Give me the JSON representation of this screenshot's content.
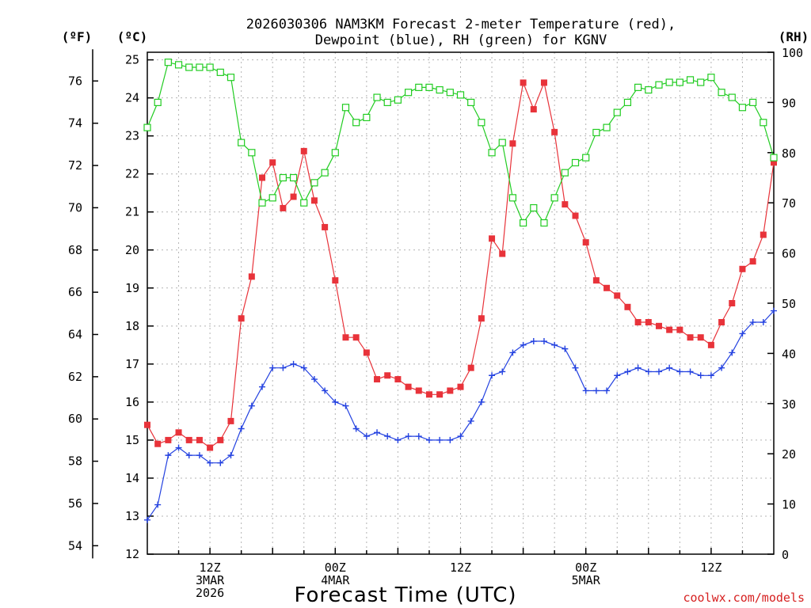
{
  "chart_data": {
    "type": "line",
    "title": [
      "2026030306 NAM3KM Forecast 2-meter Temperature (red),",
      "Dewpoint (blue), RH (green) for KGNV"
    ],
    "units": {
      "fahrenheit": "(ºF)",
      "celsius": "(ºC)",
      "rh": "(RH)"
    },
    "xlabel": "Forecast Time (UTC)",
    "credit": "coolwx.com/models",
    "x_ticks": [
      {
        "hour": 6,
        "lines": [
          "12Z",
          "3MAR",
          "2026"
        ]
      },
      {
        "hour": 18,
        "lines": [
          "00Z",
          "4MAR"
        ]
      },
      {
        "hour": 30,
        "lines": [
          "12Z"
        ]
      },
      {
        "hour": 42,
        "lines": [
          "00Z",
          "5MAR"
        ]
      },
      {
        "hour": 54,
        "lines": [
          "12Z"
        ]
      }
    ],
    "xlim": [
      0,
      60
    ],
    "ylim_celsius": [
      12,
      25.2
    ],
    "y_ticks_celsius": [
      12,
      13,
      14,
      15,
      16,
      17,
      18,
      19,
      20,
      21,
      22,
      23,
      24,
      25
    ],
    "y_ticks_fahrenheit": [
      54,
      56,
      58,
      60,
      62,
      64,
      66,
      68,
      70,
      72,
      74,
      76
    ],
    "ylim_rh": [
      0,
      100
    ],
    "y_ticks_rh": [
      0,
      10,
      20,
      30,
      40,
      50,
      60,
      70,
      80,
      90,
      100
    ],
    "grid": true,
    "series": [
      {
        "name": "2-meter Temperature",
        "axis": "celsius",
        "color": "#e8333a",
        "marker": "square-filled",
        "values": [
          15.4,
          14.9,
          15.0,
          15.2,
          15.0,
          15.0,
          14.8,
          15.0,
          15.5,
          18.2,
          19.3,
          21.9,
          22.3,
          21.1,
          21.4,
          22.6,
          21.3,
          20.6,
          19.2,
          17.7,
          17.7,
          17.3,
          16.6,
          16.7,
          16.6,
          16.4,
          16.3,
          16.2,
          16.2,
          16.3,
          16.4,
          16.9,
          18.2,
          20.3,
          19.9,
          22.8,
          24.4,
          23.7,
          24.4,
          23.1,
          21.2,
          20.9,
          20.2,
          19.2,
          19.0,
          18.8,
          18.5,
          18.1,
          18.1,
          18.0,
          17.9,
          17.9,
          17.7,
          17.7,
          17.5,
          18.1,
          18.6,
          19.5,
          19.7,
          20.4,
          22.3
        ]
      },
      {
        "name": "Dewpoint",
        "axis": "celsius",
        "color": "#2442e0",
        "marker": "plus",
        "values": [
          12.9,
          13.3,
          14.6,
          14.8,
          14.6,
          14.6,
          14.4,
          14.4,
          14.6,
          15.3,
          15.9,
          16.4,
          16.9,
          16.9,
          17.0,
          16.9,
          16.6,
          16.3,
          16.0,
          15.9,
          15.3,
          15.1,
          15.2,
          15.1,
          15.0,
          15.1,
          15.1,
          15.0,
          15.0,
          15.0,
          15.1,
          15.5,
          16.0,
          16.7,
          16.8,
          17.3,
          17.5,
          17.6,
          17.6,
          17.5,
          17.4,
          16.9,
          16.3,
          16.3,
          16.3,
          16.7,
          16.8,
          16.9,
          16.8,
          16.8,
          16.9,
          16.8,
          16.8,
          16.7,
          16.7,
          16.9,
          17.3,
          17.8,
          18.1,
          18.1,
          18.4
        ]
      },
      {
        "name": "RH",
        "axis": "rh",
        "color": "#22cc22",
        "marker": "square-open",
        "values": [
          85,
          90,
          98,
          97.5,
          97,
          97,
          97,
          96,
          95,
          82,
          80,
          70,
          71,
          75,
          75,
          70,
          74,
          76,
          80,
          89,
          86,
          87,
          91,
          90,
          90.5,
          92,
          93,
          93,
          92.5,
          92,
          91.5,
          90,
          86,
          80,
          82,
          71,
          66,
          69,
          66,
          71,
          76,
          78,
          79,
          84,
          85,
          88,
          90,
          93,
          92.5,
          93.5,
          94,
          94,
          94.5,
          94,
          95,
          92,
          91,
          89,
          90,
          86,
          79
        ]
      }
    ]
  }
}
